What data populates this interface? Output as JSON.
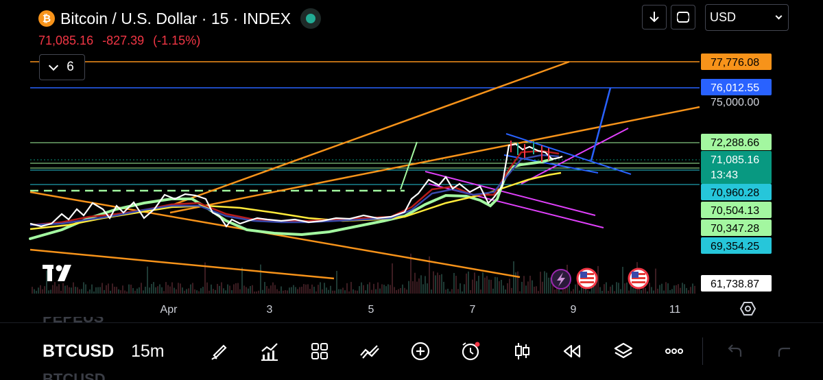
{
  "header": {
    "symbol_title": "Bitcoin / U.S. Dollar · 15 · INDEX",
    "coin_glyph": "₿",
    "last_price": "71,085.16",
    "change": "-827.39",
    "change_pct": "(-1.15%)",
    "indicator_count": "6"
  },
  "top_right": {
    "currency": "USD",
    "download_icon": "download-arrow-icon",
    "fullscreen_icon": "fullscreen-icon"
  },
  "price_labels": [
    {
      "text": "77,776.08",
      "bg": "#f7931a",
      "color": "#000000"
    },
    {
      "text": "76,012.55",
      "bg": "#2962ff",
      "color": "#ffffff"
    },
    {
      "text": "72,288.66",
      "bg": "#a3f7a0",
      "color": "#000000"
    },
    {
      "text": "71,085.16",
      "bg": "#089981",
      "color": "#ffffff",
      "sub": "13:43"
    },
    {
      "text": "70,960.28",
      "bg": "#26c6da",
      "color": "#000000"
    },
    {
      "text": "70,504.13",
      "bg": "#a3f7a0",
      "color": "#000000"
    },
    {
      "text": "70,347.28",
      "bg": "#a3f7a0",
      "color": "#000000"
    },
    {
      "text": "69,354.25",
      "bg": "#26c6da",
      "color": "#000000"
    },
    {
      "text": "61,738.87",
      "bg": "#ffffff",
      "color": "#000000"
    }
  ],
  "price_scale_tick": "75,000.00",
  "time_axis": [
    "Apr",
    "3",
    "5",
    "7",
    "9",
    "11"
  ],
  "event_icons": [
    "lightning-event-icon",
    "us-flag-event-icon",
    "us-flag-event-icon"
  ],
  "bottom_bar": {
    "symbol_prev": "PEPEUS",
    "symbol": "BTCUSD",
    "interval": "15m",
    "symbol_next": "BTCUSD",
    "tools": [
      "brush-icon",
      "indicators-icon",
      "templates-icon",
      "drawing-tools-icon",
      "add-icon",
      "alert-clock-icon",
      "candles-icon",
      "replay-icon",
      "layers-icon",
      "more-icon",
      "undo-icon",
      "redo-icon"
    ]
  },
  "colors": {
    "down": "#f23645",
    "orange": "#f7931a",
    "blue": "#2962ff",
    "green": "#22ab94",
    "magenta": "#e040fb",
    "yellow": "#ffeb3b"
  }
}
